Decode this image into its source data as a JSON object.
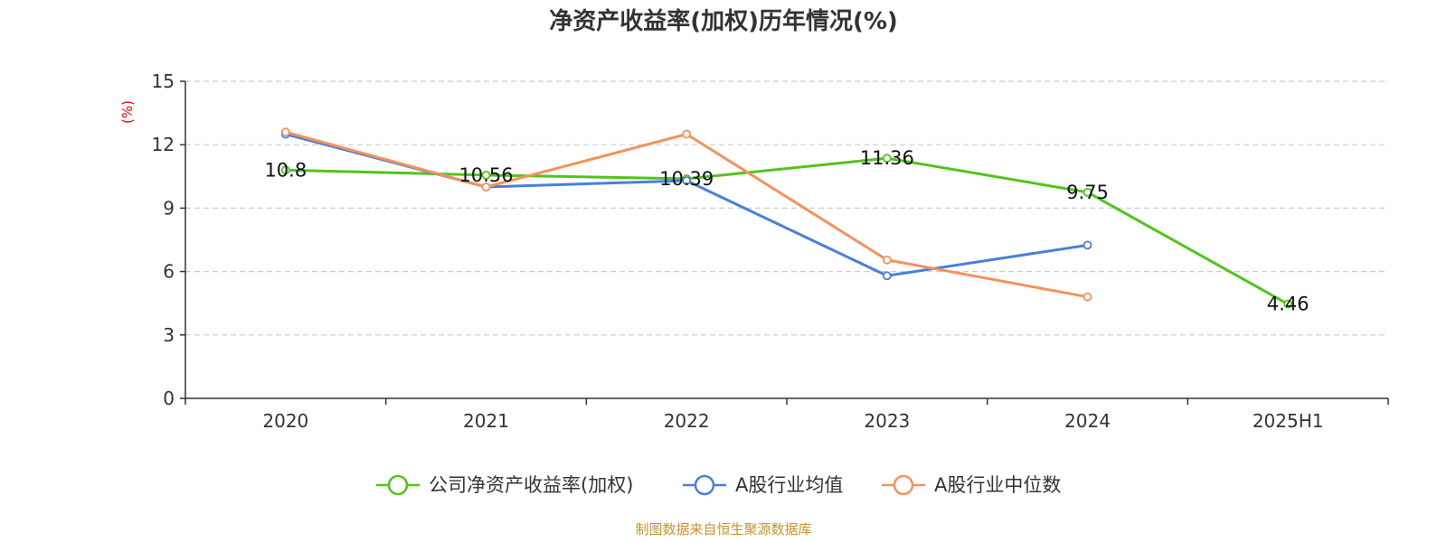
{
  "colors": {
    "title": "#333333",
    "ylabel": "#e60000",
    "source": "#c8922a",
    "grid": "#cccccc",
    "axis": "#333333"
  },
  "chart_data": {
    "type": "line",
    "title": "净资产收益率(加权)历年情况(%)",
    "ylabel": "(%)",
    "xlabel": "",
    "ylim": [
      0,
      15
    ],
    "yticks": [
      0,
      3,
      6,
      9,
      12,
      15
    ],
    "grid": "horizontal dashed",
    "legend_position": "bottom-center",
    "categories": [
      "2020",
      "2021",
      "2022",
      "2023",
      "2024",
      "2025H1"
    ],
    "series": [
      {
        "name": "公司净资产收益率(加权)",
        "color": "#52c41a",
        "values": [
          10.8,
          10.56,
          10.39,
          11.36,
          9.75,
          4.46
        ],
        "labels": [
          "10.8",
          "10.56",
          "10.39",
          "11.36",
          "9.75",
          "4.46"
        ]
      },
      {
        "name": "A股行业均值",
        "color": "#4a7fdc",
        "values": [
          12.5,
          10.0,
          10.3,
          5.8,
          7.25,
          null
        ]
      },
      {
        "name": "A股行业中位数",
        "color": "#f5915a",
        "values": [
          12.6,
          10.0,
          12.5,
          6.55,
          4.8,
          null
        ]
      }
    ]
  },
  "source": "制图数据来自恒生聚源数据库"
}
